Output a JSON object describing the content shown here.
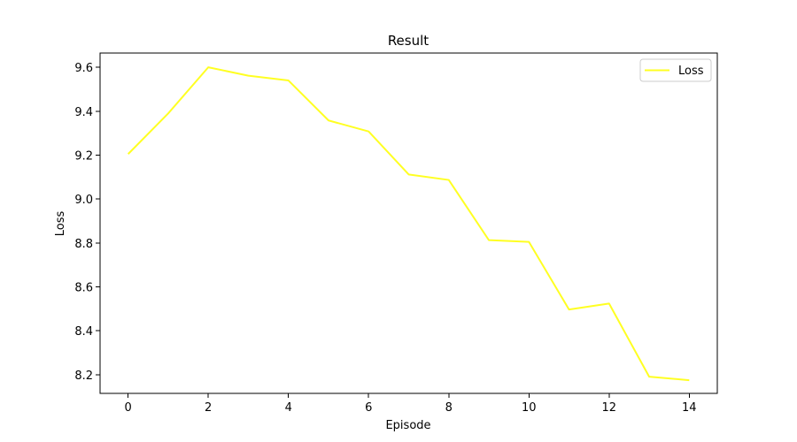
{
  "chart_data": {
    "type": "line",
    "title": "Result",
    "xlabel": "Episode",
    "ylabel": "Loss",
    "xlim": [
      -0.7,
      14.7
    ],
    "ylim": [
      8.115,
      9.665
    ],
    "xticks": [
      0,
      2,
      4,
      6,
      8,
      10,
      12,
      14
    ],
    "yticks": [
      8.2,
      8.4,
      8.6,
      8.8,
      9.0,
      9.2,
      9.4,
      9.6
    ],
    "x": [
      0,
      1,
      2,
      3,
      4,
      5,
      6,
      7,
      8,
      9,
      10,
      11,
      12,
      13,
      14
    ],
    "series": [
      {
        "name": "Loss",
        "color": "#ffff22",
        "values": [
          9.205,
          9.39,
          9.6,
          9.562,
          9.54,
          9.358,
          9.308,
          9.112,
          9.087,
          8.813,
          8.805,
          8.497,
          8.524,
          8.191,
          8.175
        ]
      }
    ],
    "grid": false,
    "legend_position": "top-right"
  }
}
